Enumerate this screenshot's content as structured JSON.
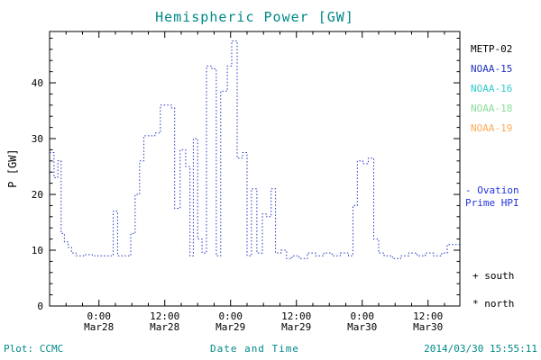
{
  "window": {
    "title": "Hemispheric Power [GW]"
  },
  "colors": {
    "title": "#008888",
    "footer": "#008888",
    "axis": "#000000",
    "data_line": "#2233bb"
  },
  "legend": {
    "satellites": [
      {
        "label": "METP-02",
        "color": "#000000"
      },
      {
        "label": "NOAA-15",
        "color": "#2233bb"
      },
      {
        "label": "NOAA-16",
        "color": "#33cccc"
      },
      {
        "label": "NOAA-18",
        "color": "#88dd99"
      },
      {
        "label": "NOAA-19",
        "color": "#ffaa55"
      }
    ],
    "model": {
      "line1": "- Ovation",
      "line2": "Prime HPI",
      "color": "#2233dd"
    },
    "south_marker": "+ south",
    "north_marker": "* north"
  },
  "footer": {
    "plot_credit": "Plot: CCMC",
    "xlabel": "Date and Time",
    "timestamp": "2014/03/30 15:55:11"
  },
  "chart_data": {
    "type": "line",
    "title": "Hemispheric Power [GW]",
    "xlabel": "Date and Time",
    "ylabel": "P [GW]",
    "ylim": [
      0,
      49.2
    ],
    "xlim": [
      -9,
      65.8
    ],
    "grid": false,
    "legend_position": "right-outside",
    "y_ticks": [
      0,
      10,
      20,
      30,
      40
    ],
    "x_ticks": [
      {
        "hour": 0,
        "time": "0:00",
        "date": "Mar28"
      },
      {
        "hour": 12,
        "time": "12:00",
        "date": "Mar28"
      },
      {
        "hour": 24,
        "time": "0:00",
        "date": "Mar29"
      },
      {
        "hour": 36,
        "time": "12:00",
        "date": "Mar29"
      },
      {
        "hour": 48,
        "time": "0:00",
        "date": "Mar30"
      },
      {
        "hour": 60,
        "time": "12:00",
        "date": "Mar30"
      }
    ],
    "x_units": "hours from Mar28 00:00",
    "series": [
      {
        "name": "Ovation Prime HPI (hemispheric power, GW)",
        "color": "#2233bb",
        "style": "dotted-step",
        "x": [
          -9,
          -8.2,
          -7.5,
          -6.9,
          -6.3,
          -5.6,
          -5,
          -4.2,
          -2.8,
          -1.2,
          0.4,
          2.6,
          3.4,
          5.8,
          6.6,
          7.4,
          8.2,
          10.2,
          11.2,
          13.2,
          13.8,
          14.8,
          15.8,
          16.6,
          17.2,
          18.0,
          18.8,
          19.6,
          20.6,
          21.4,
          22.2,
          23.4,
          24.2,
          25.2,
          26.2,
          27.0,
          27.8,
          28.8,
          29.8,
          30.6,
          31.4,
          32.2,
          33.2,
          34.2,
          35.2,
          36.5,
          38,
          39.5,
          41,
          42.5,
          44,
          45.5,
          46.3,
          47.1,
          48.1,
          49.1,
          50.1,
          51,
          52,
          53.5,
          55,
          56.5,
          58,
          59.5,
          61,
          62.5,
          63.5
        ],
        "y": [
          27.5,
          23,
          26,
          13,
          11.5,
          10.5,
          9.5,
          9,
          9.2,
          9,
          9,
          17,
          9,
          13,
          20,
          26,
          30.5,
          31,
          36,
          35.5,
          17.5,
          28,
          25,
          9,
          30,
          12,
          9.5,
          43,
          42.5,
          9,
          38.5,
          43,
          47.5,
          26.5,
          27.5,
          9,
          21,
          9.5,
          16.5,
          16,
          21,
          9.5,
          10,
          8.5,
          9,
          8.5,
          9.5,
          9,
          9.5,
          9,
          9.5,
          9,
          18,
          26,
          25.5,
          26.5,
          12,
          9.5,
          9,
          8.5,
          9,
          9.5,
          9,
          9.5,
          9,
          9.5,
          11
        ]
      }
    ]
  }
}
